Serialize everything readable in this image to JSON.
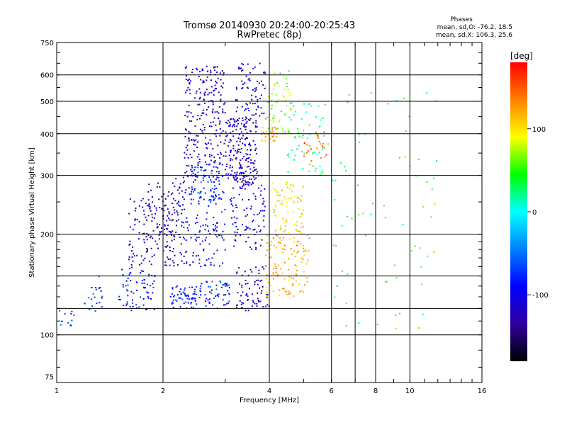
{
  "chart_data": {
    "type": "scatter",
    "title": "Tromsø 20140930 20:24:00-20:25:43",
    "subtitle": "RwPretec (8p)",
    "xlabel": "Frequency [MHz]",
    "ylabel": "Stationary phase Virtual Height [km]",
    "x_scale": "log",
    "y_scale": "log",
    "xlim": [
      1,
      16
    ],
    "ylim": [
      72,
      750
    ],
    "x_ticks": [
      1,
      2,
      4,
      6,
      8,
      10,
      16
    ],
    "x_tick_labels": [
      "1",
      "2",
      "4",
      "6",
      "8",
      "10",
      "16"
    ],
    "y_ticks": [
      75,
      100,
      200,
      300,
      400,
      500,
      600,
      750
    ],
    "y_tick_labels": [
      "75",
      "100",
      "200",
      "300",
      "400",
      "500",
      "600",
      "750"
    ],
    "x_gridlines": [
      2,
      4,
      6,
      7,
      8,
      10
    ],
    "y_gridlines": [
      100,
      120,
      150,
      200,
      300,
      400,
      500,
      600
    ],
    "grid": true,
    "phase_info": {
      "heading": "Phases",
      "line_o": "mean, sd,O: -76.2, 18.5",
      "line_x": "mean, sd,X: 106.3, 25.6"
    },
    "colorbar": {
      "label": "[deg]",
      "range": [
        -180,
        180
      ],
      "ticks": [
        100,
        0,
        -100
      ],
      "tick_labels": [
        "100",
        "0",
        "-100"
      ],
      "colors": [
        "#ff0000",
        "#ff8000",
        "#ffff00",
        "#00ff00",
        "#00ffff",
        "#0080ff",
        "#0000ff",
        "#3000a0",
        "#000000"
      ]
    },
    "clusters": [
      {
        "x": [
          1.0,
          1.12
        ],
        "y": [
          104,
          120
        ],
        "phase": -70,
        "n": 12
      },
      {
        "x": [
          1.2,
          1.35
        ],
        "y": [
          115,
          150
        ],
        "phase": -75,
        "n": 20
      },
      {
        "x": [
          1.5,
          1.9
        ],
        "y": [
          118,
          160
        ],
        "phase": -85,
        "n": 70
      },
      {
        "x": [
          1.6,
          2.2
        ],
        "y": [
          160,
          260
        ],
        "phase": -120,
        "n": 130
      },
      {
        "x": [
          1.8,
          2.3
        ],
        "y": [
          180,
          300
        ],
        "phase": -125,
        "n": 60
      },
      {
        "x": [
          2.1,
          2.5
        ],
        "y": [
          120,
          140
        ],
        "phase": -80,
        "n": 60
      },
      {
        "x": [
          2.2,
          3.0
        ],
        "y": [
          160,
          320
        ],
        "phase": -95,
        "n": 180
      },
      {
        "x": [
          2.3,
          3.0
        ],
        "y": [
          320,
          640
        ],
        "phase": -115,
        "n": 220
      },
      {
        "x": [
          2.4,
          2.9
        ],
        "y": [
          250,
          320
        ],
        "phase": -70,
        "n": 50
      },
      {
        "x": [
          2.5,
          3.1
        ],
        "y": [
          120,
          145
        ],
        "phase": -75,
        "n": 60
      },
      {
        "x": [
          3.0,
          3.7
        ],
        "y": [
          280,
          450
        ],
        "phase": -120,
        "n": 200
      },
      {
        "x": [
          3.1,
          3.9
        ],
        "y": [
          180,
          300
        ],
        "phase": -105,
        "n": 100
      },
      {
        "x": [
          3.2,
          3.9
        ],
        "y": [
          450,
          650
        ],
        "phase": -110,
        "n": 70
      },
      {
        "x": [
          3.2,
          4.0
        ],
        "y": [
          118,
          160
        ],
        "phase": -115,
        "n": 70
      },
      {
        "x": [
          3.8,
          4.2
        ],
        "y": [
          380,
          420
        ],
        "phase": 120,
        "n": 30
      },
      {
        "x": [
          3.9,
          4.6
        ],
        "y": [
          400,
          640
        ],
        "phase": 70,
        "n": 60
      },
      {
        "x": [
          3.9,
          5.2
        ],
        "y": [
          130,
          200
        ],
        "phase": 120,
        "n": 120
      },
      {
        "x": [
          4.1,
          5.0
        ],
        "y": [
          200,
          290
        ],
        "phase": 100,
        "n": 80
      },
      {
        "x": [
          4.5,
          5.8
        ],
        "y": [
          300,
          500
        ],
        "phase": 20,
        "n": 60
      },
      {
        "x": [
          5.0,
          6.0
        ],
        "y": [
          320,
          430
        ],
        "phase": 140,
        "n": 25
      },
      {
        "x": [
          6.0,
          12.0
        ],
        "y": [
          100,
          600
        ],
        "phase": 40,
        "n": 70
      }
    ]
  }
}
